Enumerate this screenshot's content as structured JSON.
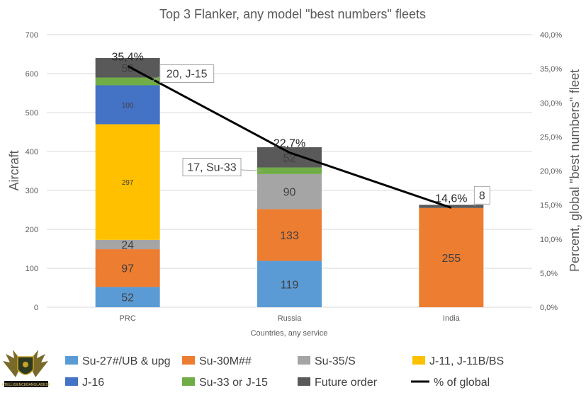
{
  "chart_data": {
    "type": "bar",
    "stacked": true,
    "title": "Top 3 Flanker, any model \"best numbers\" fleets",
    "xlabel": "Countries, any service",
    "ylabel": "Aircraft",
    "y2label": "Percent, global \"best numbers\" fleet",
    "ylim": [
      0,
      700
    ],
    "yticks": [
      "0",
      "100",
      "200",
      "300",
      "400",
      "500",
      "600",
      "700"
    ],
    "y2ticks": [
      "0,0%",
      "5,0%",
      "10,0%",
      "15,0%",
      "20,0%",
      "25,0%",
      "30,0%",
      "35,0%",
      "40,0%"
    ],
    "categories": [
      "PRC",
      "Russia",
      "India"
    ],
    "series": [
      {
        "name": "Su-27#/UB & upg",
        "color": "#5b9bd5",
        "values": [
          52,
          119,
          0
        ],
        "labels": [
          "52",
          "119",
          ""
        ],
        "label_size": "big"
      },
      {
        "name": "Su-30M##",
        "color": "#ed7d31",
        "values": [
          97,
          133,
          255
        ],
        "labels": [
          "97",
          "133",
          "255"
        ],
        "label_size": "big"
      },
      {
        "name": "Su-35/S",
        "color": "#a5a5a5",
        "values": [
          24,
          90,
          0
        ],
        "labels": [
          "24",
          "90",
          ""
        ],
        "label_size": "big"
      },
      {
        "name": "J-11, J-11B/BS",
        "color": "#ffc000",
        "values": [
          297,
          0,
          0
        ],
        "labels": [
          "297",
          "",
          ""
        ],
        "label_size": "small"
      },
      {
        "name": "J-16",
        "color": "#4472c4",
        "values": [
          100,
          0,
          0
        ],
        "labels": [
          "100",
          "",
          ""
        ],
        "label_size": "small"
      },
      {
        "name": "Su-33 or J-15",
        "color": "#70ad47",
        "values": [
          20,
          17,
          0
        ],
        "labels": [
          "",
          "",
          ""
        ],
        "label_size": "big"
      },
      {
        "name": "Future order",
        "color": "#595959",
        "values": [
          50,
          52,
          8
        ],
        "labels": [
          "50",
          "52",
          ""
        ],
        "label_size": "big"
      }
    ],
    "line": {
      "name": "% of global",
      "color": "#000000",
      "values": [
        35.4,
        22.7,
        14.6
      ],
      "labels": [
        "35,4%",
        "22,7%",
        "14,6%"
      ],
      "ylim": [
        0,
        40
      ]
    },
    "callouts": [
      {
        "category": "PRC",
        "series": "Su-33 or J-15",
        "text": "20, J-15"
      },
      {
        "category": "Russia",
        "series": "Su-33 or J-15",
        "text": "17, Su-33"
      },
      {
        "category": "India",
        "series": "Future order",
        "text": "8"
      }
    ],
    "legend_position": "bottom"
  },
  "watermark": {
    "banner_text": "KTELLIGENCEBANGLADESH"
  }
}
